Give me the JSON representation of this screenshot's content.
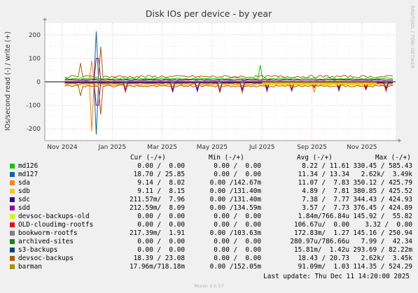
{
  "side_label": "RRDTOOL / TOBI OETIKER",
  "footer": {
    "last_update": "Last update: Thu Dec 11 14:20:00 2025",
    "munin": "Munin 2.0.57"
  },
  "legend": {
    "headers": {
      "cur": "Cur (-/+)",
      "min": "Min (-/+)",
      "avg": "Avg (-/+)",
      "max": "Max (-/+)"
    },
    "rows": [
      {
        "name": "md126",
        "color": "#00cc00",
        "cur": "0.00 /  0.00",
        "min": "0.00 /  0.00",
        "avg": "8.22 / 11.61",
        "max": "330.45 / 585.43"
      },
      {
        "name": "md127",
        "color": "#0066b3",
        "cur": "18.70 / 25.85",
        "min": "0.00 /  0.00",
        "avg": "11.34 / 13.34",
        "max": "2.62k/  3.49k"
      },
      {
        "name": "sda",
        "color": "#ff8000",
        "cur": "9.14 /  8.02",
        "min": "0.00 /142.67m",
        "avg": "11.07 /  7.83",
        "max": "350.12 / 425.79"
      },
      {
        "name": "sdb",
        "color": "#ffcc00",
        "cur": "9.11 /  8.15",
        "min": "0.00 /131.40m",
        "avg": "4.89 /  7.81",
        "max": "380.85 / 425.52"
      },
      {
        "name": "sdc",
        "color": "#330099",
        "cur": "211.57m/  7.96",
        "min": "0.00 /131.40m",
        "avg": "7.38 /  7.77",
        "max": "344.43 / 424.93"
      },
      {
        "name": "sdd",
        "color": "#990099",
        "cur": "212.59m/  8.09",
        "min": "0.00 /134.59m",
        "avg": "3.57 /  7.73",
        "max": "376.45 / 424.89"
      },
      {
        "name": "devsoc-backups-old",
        "color": "#ccff00",
        "cur": "0.00 /  0.00",
        "min": "0.00 /  0.00",
        "avg": "1.84m/766.84u",
        "max": "145.92 /  55.82"
      },
      {
        "name": "OLD-cloudimg-rootfs",
        "color": "#ff0000",
        "cur": "0.00 /  0.00",
        "min": "0.00 /  0.00",
        "avg": "106.67u/  0.00",
        "max": "3.32 /  0.00"
      },
      {
        "name": "bookworm-rootfs",
        "color": "#808080",
        "cur": "217.39m/  1.91",
        "min": "0.00 /103.63m",
        "avg": "172.83m/  1.27",
        "max": "145.16 / 250.94"
      },
      {
        "name": "archived-sites",
        "color": "#008f00",
        "cur": "0.00 /  0.00",
        "min": "0.00 /  0.00",
        "avg": "280.97u/786.66u",
        "max": "7.99 /  42.34"
      },
      {
        "name": "s3-backups",
        "color": "#00487d",
        "cur": "0.00 /  0.00",
        "min": "0.00 /  0.00",
        "avg": "15.81m/  1.42u",
        "max": "293.69 / 82.22m"
      },
      {
        "name": "devsoc-backups",
        "color": "#b35a00",
        "cur": "18.39 / 23.08",
        "min": "0.00 /  0.00",
        "avg": "18.43 / 20.73",
        "max": "2.62k/  3.45k"
      },
      {
        "name": "barman",
        "color": "#b38f00",
        "cur": "17.96m/718.18m",
        "min": "0.00 /152.05m",
        "avg": "91.09m/  1.03",
        "max": "114.35 / 524.29"
      }
    ]
  },
  "chart_data": {
    "type": "line",
    "title": "Disk IOs per device - by year",
    "ylabel": "IOs/second read (-) / write (+)",
    "xlabel": "",
    "ylim": [
      -250,
      250
    ],
    "yticks": [
      -200,
      -100,
      0,
      100,
      200
    ],
    "x_ticks": [
      "Nov 2024",
      "Jan 2025",
      "Mar 2025",
      "May 2025",
      "Jul 2025",
      "Sep 2025",
      "Nov 2025"
    ],
    "x_tick_months": [
      0,
      2,
      4,
      6,
      8,
      10,
      12
    ],
    "xlim_months": [
      -0.7,
      13.35
    ],
    "grid": true,
    "series": [
      {
        "name": "md126",
        "color": "#00cc00",
        "write": 14,
        "read": -6
      },
      {
        "name": "md127",
        "color": "#0066b3",
        "write": 8,
        "read": -5
      },
      {
        "name": "sda",
        "color": "#ff8000",
        "write": 8,
        "read": -10
      },
      {
        "name": "sdb",
        "color": "#ffcc00",
        "write": 8,
        "read": -15
      },
      {
        "name": "sdc",
        "color": "#330099",
        "write": 8,
        "read": -4
      },
      {
        "name": "sdd",
        "color": "#990099",
        "write": 8,
        "read": -3
      },
      {
        "name": "devsoc-backups",
        "color": "#b35a00",
        "write": 22,
        "read": -18
      },
      {
        "name": "barman",
        "color": "#b38f00",
        "write": 1,
        "read": -1
      }
    ],
    "events": [
      {
        "month": 1.35,
        "series": "md127",
        "write": 215,
        "read": -225
      },
      {
        "month": 1.55,
        "series": "devsoc-backups",
        "write": 150,
        "read": -140
      },
      {
        "month": 1.2,
        "series": "sda",
        "write": 90,
        "read": -210
      },
      {
        "month": 0.7,
        "series": "devsoc-backups",
        "write": 80,
        "read": -60
      },
      {
        "month": 1.4,
        "series": "sdd",
        "write": 100,
        "read": -100
      },
      {
        "month": 7.9,
        "series": "md126",
        "write": 72,
        "read": -10
      }
    ],
    "dips": [
      2.55,
      4.45,
      5.45,
      6.3,
      7.25,
      8.2,
      9.15,
      10.1,
      11.1,
      12.15,
      13.0
    ]
  }
}
